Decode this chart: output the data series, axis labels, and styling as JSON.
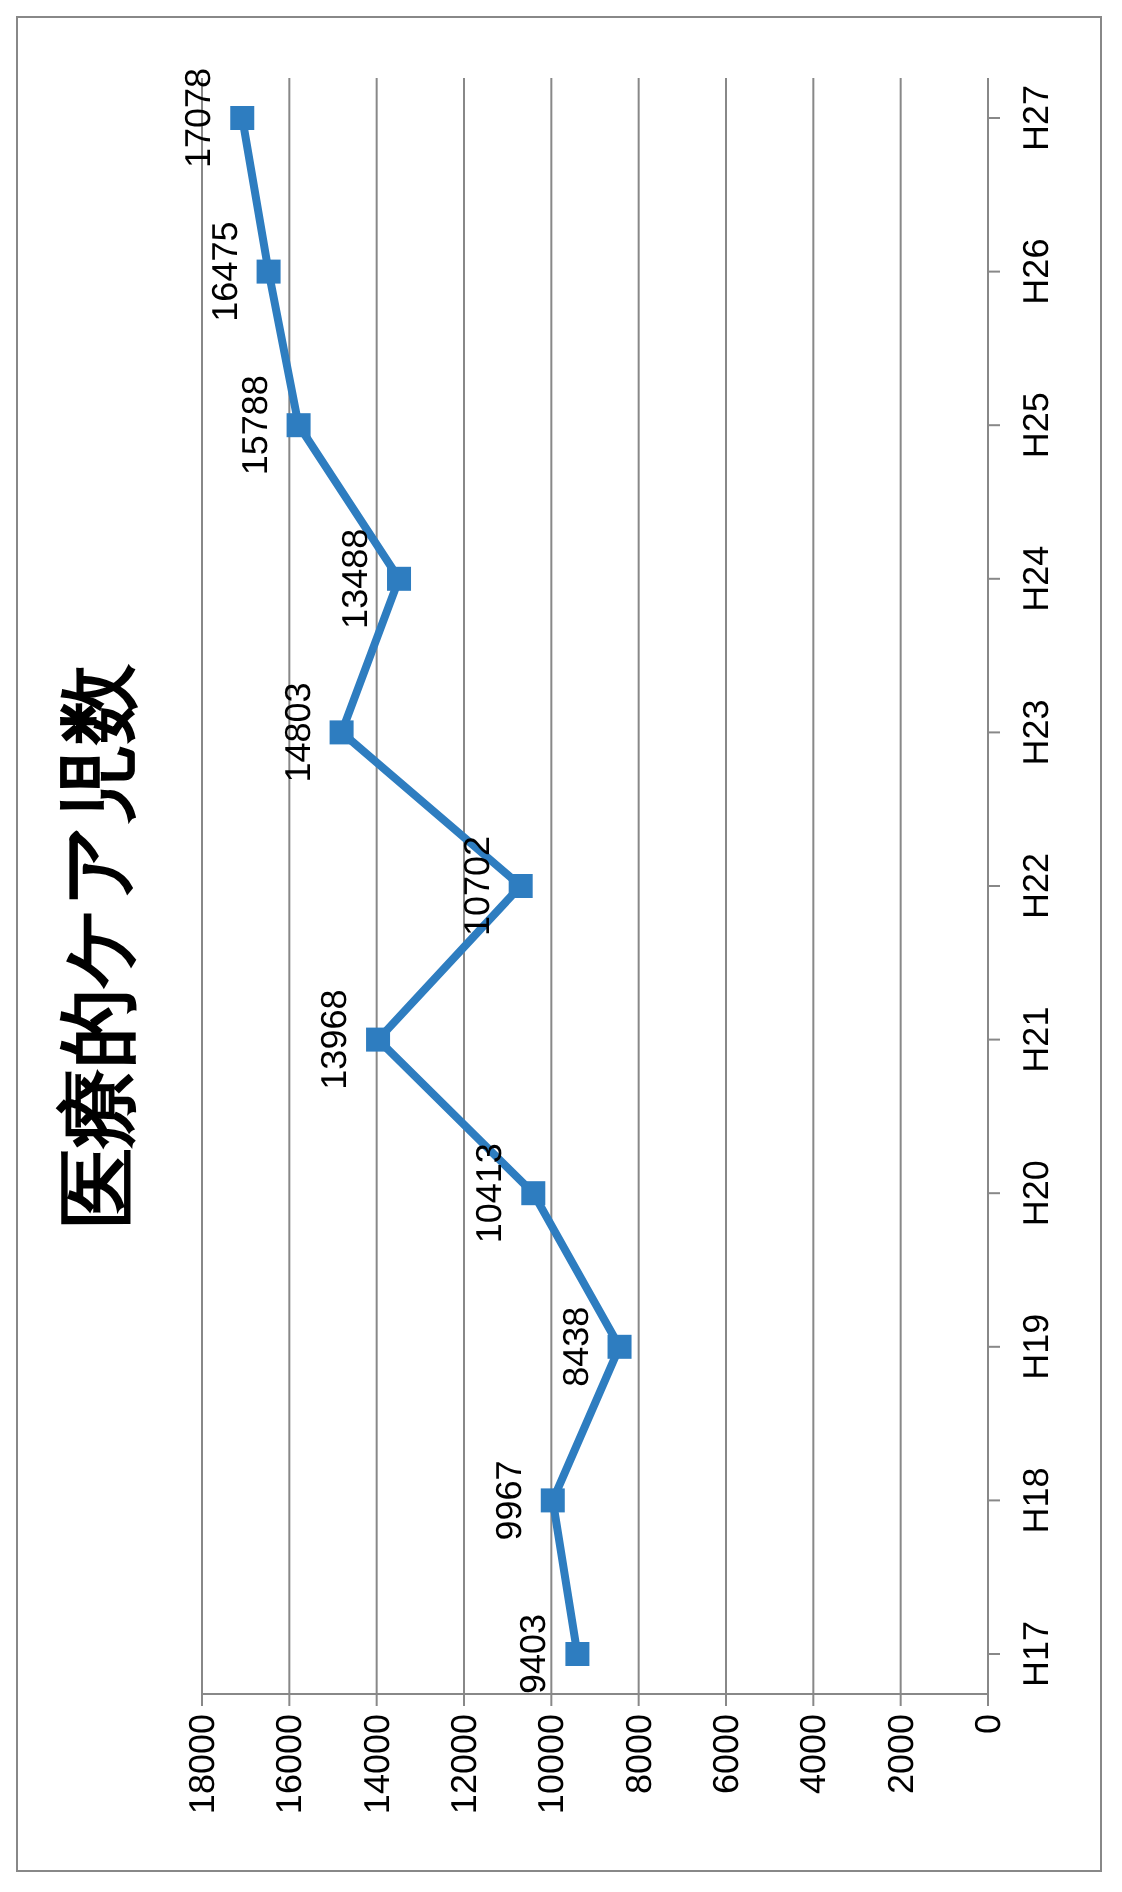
{
  "chart_data": {
    "type": "line",
    "title": "医療的ケア児数",
    "orientation": "horizontal",
    "categories": [
      "H27",
      "H26",
      "H25",
      "H24",
      "H23",
      "H22",
      "H21",
      "H20",
      "H19",
      "H18",
      "H17"
    ],
    "values": [
      17078,
      16475,
      15788,
      13488,
      14803,
      10702,
      13968,
      10413,
      8438,
      9967,
      9403
    ],
    "color": "#2e7dc0",
    "xlim": [
      18000,
      0
    ],
    "xticks": [
      18000,
      16000,
      14000,
      12000,
      10000,
      8000,
      6000,
      4000,
      2000,
      0
    ],
    "grid": "x",
    "marker": "square",
    "data_labels": true,
    "legend": false
  }
}
